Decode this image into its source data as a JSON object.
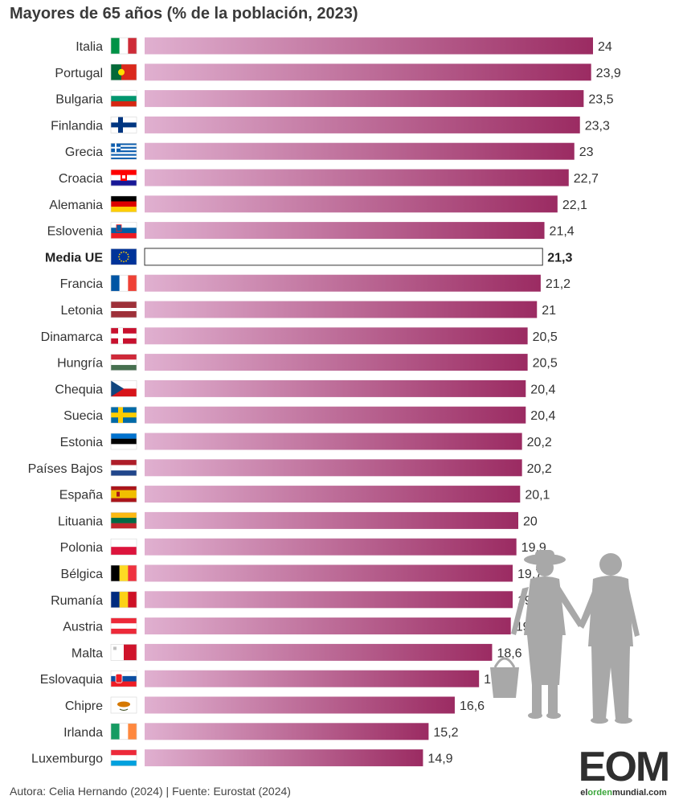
{
  "colors": {
    "bar_start": "#e0b0d0",
    "bar_end": "#9b2b62",
    "highlight_fill": "#ffffff",
    "highlight_stroke": "#333333",
    "logo_green": "#3aa63a"
  },
  "chart_data": {
    "type": "bar",
    "orientation": "horizontal",
    "title": "Mayores de 65 años (% de la población, 2023)",
    "xlim": [
      0,
      24
    ],
    "grid": false,
    "legend": "none",
    "highlight": "Media UE",
    "categories": [
      "Italia",
      "Portugal",
      "Bulgaria",
      "Finlandia",
      "Grecia",
      "Croacia",
      "Alemania",
      "Eslovenia",
      "Media UE",
      "Francia",
      "Letonia",
      "Dinamarca",
      "Hungría",
      "Chequia",
      "Suecia",
      "Estonia",
      "Países Bajos",
      "España",
      "Lituania",
      "Polonia",
      "Bélgica",
      "Rumanía",
      "Austria",
      "Malta",
      "Eslovaquia",
      "Chipre",
      "Irlanda",
      "Luxemburgo"
    ],
    "values": [
      24,
      23.9,
      23.5,
      23.3,
      23,
      22.7,
      22.1,
      21.4,
      21.3,
      21.2,
      21,
      20.5,
      20.5,
      20.4,
      20.4,
      20.2,
      20.2,
      20.1,
      20,
      19.9,
      19.7,
      19.7,
      19.6,
      18.6,
      17.9,
      16.6,
      15.2,
      14.9
    ],
    "value_labels": [
      "24",
      "23,9",
      "23,5",
      "23,3",
      "23",
      "22,7",
      "22,1",
      "21,4",
      "21,3",
      "21,2",
      "21",
      "20,5",
      "20,5",
      "20,4",
      "20,4",
      "20,2",
      "20,2",
      "20,1",
      "20",
      "19,9",
      "19,7",
      "19,7",
      "19,6",
      "18,6",
      "17,9",
      "16,6",
      "15,2",
      "14,9"
    ],
    "flag_icons": [
      "italy-flag-icon",
      "portugal-flag-icon",
      "bulgaria-flag-icon",
      "finland-flag-icon",
      "greece-flag-icon",
      "croatia-flag-icon",
      "germany-flag-icon",
      "slovenia-flag-icon",
      "eu-flag-icon",
      "france-flag-icon",
      "latvia-flag-icon",
      "denmark-flag-icon",
      "hungary-flag-icon",
      "czechia-flag-icon",
      "sweden-flag-icon",
      "estonia-flag-icon",
      "netherlands-flag-icon",
      "spain-flag-icon",
      "lithuania-flag-icon",
      "poland-flag-icon",
      "belgium-flag-icon",
      "romania-flag-icon",
      "austria-flag-icon",
      "malta-flag-icon",
      "slovakia-flag-icon",
      "cyprus-flag-icon",
      "ireland-flag-icon",
      "luxembourg-flag-icon"
    ]
  },
  "footer": {
    "source": "Autora: Celia Hernando (2024) | Fuente: Eurostat (2024)"
  },
  "logo": {
    "text": "EOM",
    "url_prefix": "el",
    "url_highlight": "orden",
    "url_suffix": "mundial.com"
  },
  "decoration": {
    "icon": "elderly-couple-icon"
  }
}
